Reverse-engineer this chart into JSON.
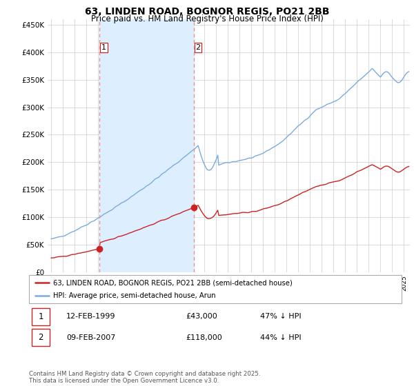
{
  "title": "63, LINDEN ROAD, BOGNOR REGIS, PO21 2BB",
  "subtitle": "Price paid vs. HM Land Registry's House Price Index (HPI)",
  "ylabel_ticks": [
    "£0",
    "£50K",
    "£100K",
    "£150K",
    "£200K",
    "£250K",
    "£300K",
    "£350K",
    "£400K",
    "£450K"
  ],
  "ytick_values": [
    0,
    50000,
    100000,
    150000,
    200000,
    250000,
    300000,
    350000,
    400000,
    450000
  ],
  "ylim": [
    0,
    460000
  ],
  "sale1_date": 1999.12,
  "sale1_price": 43000,
  "sale2_date": 2007.12,
  "sale2_price": 118000,
  "red_line_color": "#cc2222",
  "blue_line_color": "#7aabe0",
  "vline_color": "#ee8888",
  "shade_color": "#ddeeff",
  "marker_color": "#cc2222",
  "legend_label_red": "63, LINDEN ROAD, BOGNOR REGIS, PO21 2BB (semi-detached house)",
  "legend_label_blue": "HPI: Average price, semi-detached house, Arun",
  "table_row1": [
    "1",
    "12-FEB-1999",
    "£43,000",
    "47% ↓ HPI"
  ],
  "table_row2": [
    "2",
    "09-FEB-2007",
    "£118,000",
    "44% ↓ HPI"
  ],
  "footer": "Contains HM Land Registry data © Crown copyright and database right 2025.\nThis data is licensed under the Open Government Licence v3.0.",
  "background_color": "#ffffff",
  "grid_color": "#cccccc"
}
